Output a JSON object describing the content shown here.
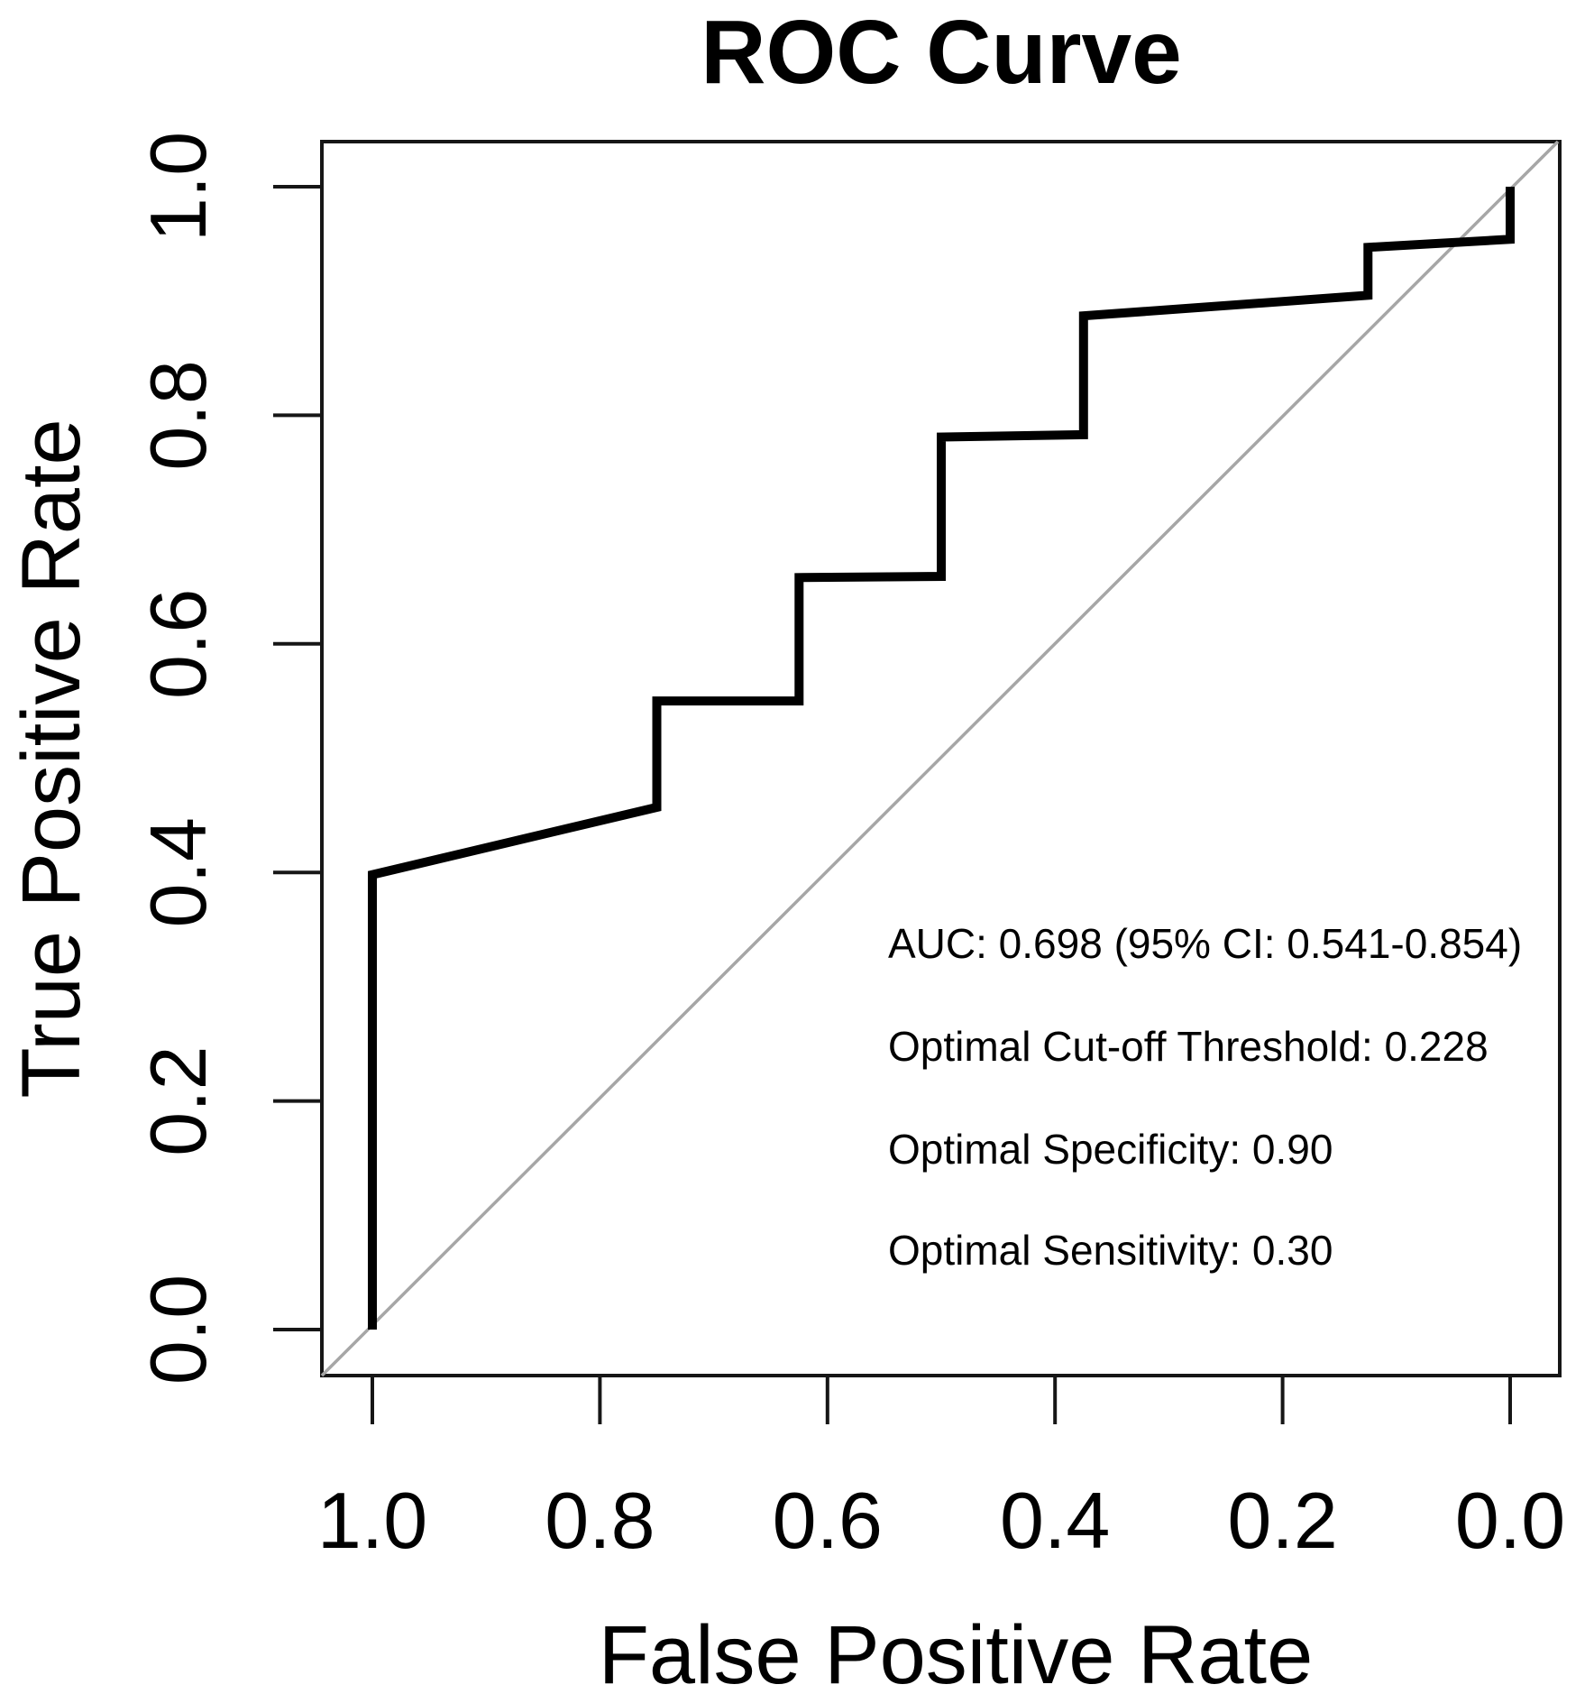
{
  "title": "ROC Curve",
  "colors": {
    "background": "#ffffff",
    "curve": "#000000",
    "chance_line": "#a6a6a6",
    "axis": "#161616",
    "text": "#000000"
  },
  "axes": {
    "x": {
      "label": "False Positive Rate",
      "tick_labels": [
        "1.0",
        "0.8",
        "0.6",
        "0.4",
        "0.2",
        "0.0"
      ],
      "tick_values": [
        1.0,
        0.8,
        0.6,
        0.4,
        0.2,
        0.0
      ],
      "direction": "reversed"
    },
    "y": {
      "label": "True Positive Rate",
      "tick_labels": [
        "0.0",
        "0.2",
        "0.4",
        "0.6",
        "0.8",
        "1.0"
      ],
      "tick_values": [
        0.0,
        0.2,
        0.4,
        0.6,
        0.8,
        1.0
      ],
      "direction": "normal"
    }
  },
  "annotations": {
    "lines": [
      "AUC: 0.698 (95% CI: 0.541-0.854)",
      "Optimal Cut-off Threshold: 0.228",
      "Optimal Specificity: 0.90",
      "Optimal Sensitivity: 0.30"
    ]
  },
  "chart_data": {
    "type": "line",
    "title": "ROC Curve",
    "xlabel": "False Positive Rate",
    "ylabel": "True Positive Rate",
    "xlim": [
      1.0,
      0.0
    ],
    "ylim": [
      0.0,
      1.0
    ],
    "grid": false,
    "legend": "none",
    "auc": 0.698,
    "auc_ci_95": [
      0.541,
      0.854
    ],
    "optimal_cutoff_threshold": 0.228,
    "optimal_specificity": 0.9,
    "optimal_sensitivity": 0.3,
    "series": [
      {
        "name": "ROC curve",
        "style": "thick black step line",
        "points_fpr_tpr": [
          [
            1.0,
            0.0
          ],
          [
            1.0,
            0.398
          ],
          [
            0.75,
            0.457
          ],
          [
            0.75,
            0.55
          ],
          [
            0.625,
            0.55
          ],
          [
            0.625,
            0.658
          ],
          [
            0.5,
            0.659
          ],
          [
            0.5,
            0.781
          ],
          [
            0.375,
            0.783
          ],
          [
            0.375,
            0.887
          ],
          [
            0.125,
            0.905
          ],
          [
            0.125,
            0.947
          ],
          [
            0.0,
            0.954
          ],
          [
            0.0,
            1.0
          ]
        ]
      },
      {
        "name": "chance diagonal",
        "style": "thin gray line",
        "points_fpr_tpr": [
          [
            1.0,
            0.0
          ],
          [
            0.0,
            1.0
          ]
        ]
      }
    ]
  }
}
